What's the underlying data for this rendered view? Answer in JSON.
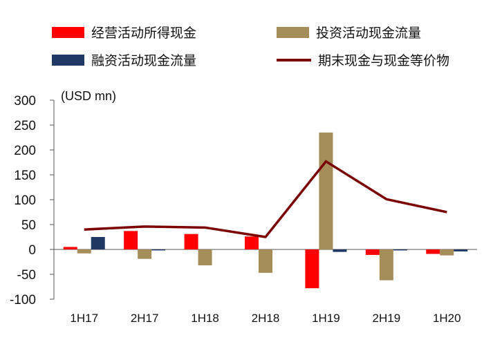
{
  "chart_data": {
    "type": "bar",
    "unit_label": "(USD mn)",
    "categories": [
      "1H17",
      "2H17",
      "1H18",
      "2H18",
      "1H19",
      "2H19",
      "1H20"
    ],
    "ylim": [
      -100,
      300
    ],
    "yticks": [
      300,
      250,
      200,
      150,
      100,
      50,
      0,
      -50,
      -100
    ],
    "grid": false,
    "legend_position": "top",
    "series": [
      {
        "name": "经营活动所得现金",
        "kind": "bar",
        "color": "#ff0000",
        "values": [
          5,
          37,
          31,
          26,
          -78,
          -11,
          -9
        ]
      },
      {
        "name": "投资活动现金流量",
        "kind": "bar",
        "color": "#a58d5a",
        "values": [
          -8,
          -19,
          -32,
          -47,
          235,
          -62,
          -12
        ]
      },
      {
        "name": "融资活动现金流量",
        "kind": "bar",
        "color": "#1f3864",
        "values": [
          25,
          -2,
          0,
          0,
          -5,
          -2,
          -4
        ]
      },
      {
        "name": "期末现金与现金等价物",
        "kind": "line",
        "color": "#7b0000",
        "values": [
          40,
          46,
          44,
          25,
          177,
          101,
          75
        ]
      }
    ]
  }
}
